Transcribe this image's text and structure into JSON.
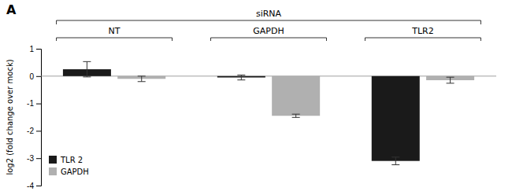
{
  "chart_data": {
    "type": "bar",
    "title": "A",
    "annotations": [
      "siRNA"
    ],
    "categories": [
      "NT",
      "GAPDH",
      "TLR2"
    ],
    "series": [
      {
        "name": "TLR 2",
        "color": "#1a1a1a",
        "values": [
          0.25,
          -0.05,
          -3.1
        ],
        "errors": [
          0.28,
          0.09,
          0.14
        ]
      },
      {
        "name": "GAPDH",
        "color": "#b0b0b0",
        "values": [
          -0.1,
          -1.45,
          -0.15
        ],
        "errors": [
          0.1,
          0.06,
          0.11
        ]
      }
    ],
    "ylabel": "log2 (fold change over mock)",
    "ylim": [
      -4,
      1
    ],
    "yticks": [
      -4,
      -3,
      -2,
      -1,
      0,
      1
    ],
    "grid": false,
    "legend": "lower left"
  }
}
